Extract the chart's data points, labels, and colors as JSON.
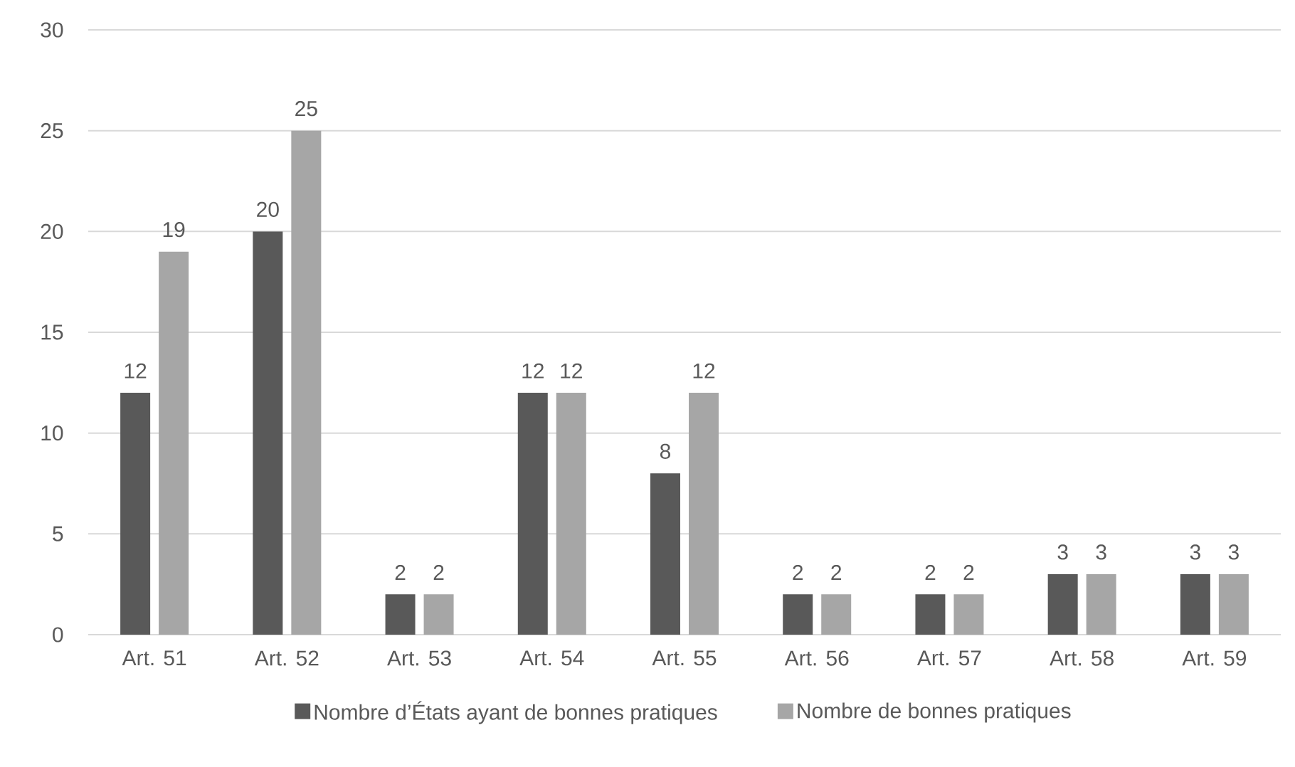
{
  "chart_data": {
    "type": "bar",
    "categories": [
      "Art. 51",
      "Art. 52",
      "Art. 53",
      "Art. 54",
      "Art. 55",
      "Art. 56",
      "Art. 57",
      "Art. 58",
      "Art. 59"
    ],
    "series": [
      {
        "name": "Nombre d’États ayant de bonnes pratiques",
        "color": "#595959",
        "values": [
          12,
          20,
          2,
          12,
          8,
          2,
          2,
          3,
          3
        ]
      },
      {
        "name": "Nombre de bonnes pratiques",
        "color": "#a6a6a6",
        "values": [
          19,
          25,
          2,
          12,
          12,
          2,
          2,
          3,
          3
        ]
      }
    ],
    "ylim": [
      0,
      30
    ],
    "yticks": [
      0,
      5,
      10,
      15,
      20,
      25,
      30
    ],
    "grid": "y",
    "legend": "bottom",
    "data_labels": true
  }
}
